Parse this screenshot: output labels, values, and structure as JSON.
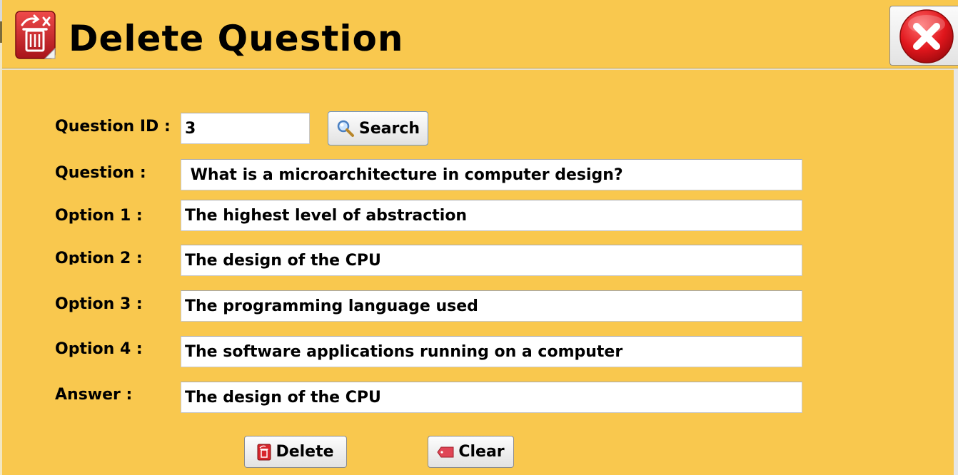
{
  "window": {
    "title": "Delete Question",
    "icon": "trash-can-icon",
    "close_icon": "close-icon"
  },
  "form": {
    "question_id_label": "Question ID :",
    "question_id_value": "3",
    "search_label": "Search",
    "search_icon": "search-icon",
    "question_label": "Question :",
    "question_value": " What is a microarchitecture in computer design?",
    "option1_label": "Option 1 :",
    "option1_value": "The highest level of abstraction",
    "option2_label": "Option 2 :",
    "option2_value": "The design of the CPU",
    "option3_label": "Option 3 :",
    "option3_value": "The programming language used",
    "option4_label": "Option 4 :",
    "option4_value": "The software applications running on a computer",
    "answer_label": "Answer :",
    "answer_value": "The design of the CPU"
  },
  "actions": {
    "delete_label": "Delete",
    "delete_icon": "trash-can-icon",
    "clear_label": "Clear",
    "clear_icon": "eraser-icon"
  },
  "colors": {
    "background": "#f9c84e",
    "accent_red": "#d7262c"
  }
}
